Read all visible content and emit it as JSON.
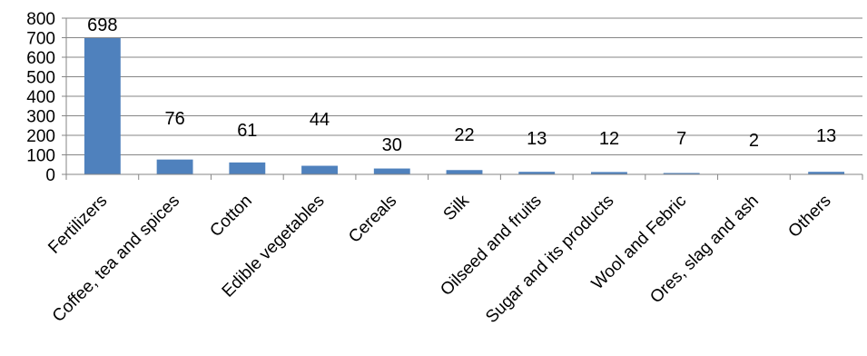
{
  "chart_data": {
    "type": "bar",
    "categories": [
      "Fertilizers",
      "Coffee, tea and spices",
      "Cotton",
      "Edible vegetables",
      "Cereals",
      "Silk",
      "Oilseed and fruits",
      "Sugar and its products",
      "Wool and Febric",
      "Ores, slag and ash",
      "Others"
    ],
    "values": [
      698,
      76,
      61,
      44,
      30,
      22,
      13,
      12,
      7,
      2,
      13
    ],
    "data_labels": [
      "698",
      "76",
      "61",
      "44",
      "30",
      "22",
      "13",
      "12",
      "7",
      "2",
      "13"
    ],
    "yticks": [
      "0",
      "100",
      "200",
      "300",
      "400",
      "500",
      "600",
      "700",
      "800"
    ],
    "ylim": [
      0,
      800
    ],
    "grid": true,
    "legend": false,
    "bar_color": "#4f81bd",
    "grid_color": "#868686"
  }
}
